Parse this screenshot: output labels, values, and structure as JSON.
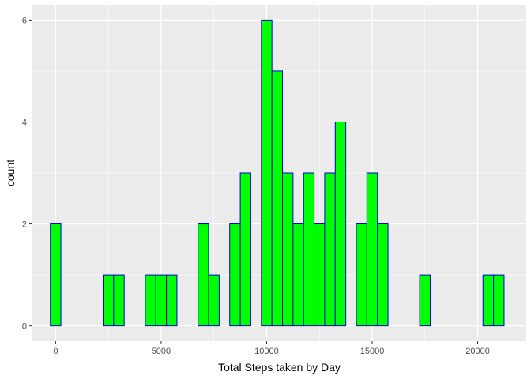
{
  "chart_data": {
    "type": "bar",
    "subtype": "histogram",
    "title": "",
    "xlabel": "Total Steps taken by Day",
    "ylabel": "count",
    "xlim": [
      -1100,
      22300
    ],
    "ylim": [
      -0.3,
      6.3
    ],
    "x_ticks": [
      0,
      5000,
      10000,
      15000,
      20000
    ],
    "x_tick_labels": [
      "0",
      "5000",
      "10000",
      "15000",
      "20000"
    ],
    "y_ticks": [
      0,
      2,
      4,
      6
    ],
    "y_tick_labels": [
      "0",
      "2",
      "4",
      "6"
    ],
    "bin_width": 500,
    "bin_starts": [
      -250,
      250,
      750,
      1250,
      1750,
      2250,
      2750,
      3250,
      3750,
      4250,
      4750,
      5250,
      5750,
      6250,
      6750,
      7250,
      7750,
      8250,
      8750,
      9250,
      9750,
      10250,
      10750,
      11250,
      11750,
      12250,
      12750,
      13250,
      13750,
      14250,
      14750,
      15250,
      15750,
      16250,
      16750,
      17250,
      17750,
      18250,
      18750,
      19250,
      19750,
      20250,
      20750
    ],
    "values": [
      2,
      0,
      0,
      0,
      0,
      1,
      1,
      0,
      0,
      1,
      1,
      1,
      0,
      0,
      2,
      1,
      0,
      2,
      3,
      0,
      6,
      5,
      3,
      2,
      3,
      2,
      3,
      4,
      0,
      2,
      3,
      2,
      0,
      0,
      0,
      1,
      0,
      0,
      0,
      0,
      0,
      1,
      1
    ],
    "grid": true,
    "legend": "none",
    "colors": {
      "panel_background": "#EBEBEB",
      "grid_major": "#FFFFFF",
      "bar_fill": "#00FF00",
      "bar_outline": "#0000CD",
      "tick_label": "#4D4D4D",
      "axis_title": "#000000",
      "page_background": "#FFFFFF"
    }
  }
}
